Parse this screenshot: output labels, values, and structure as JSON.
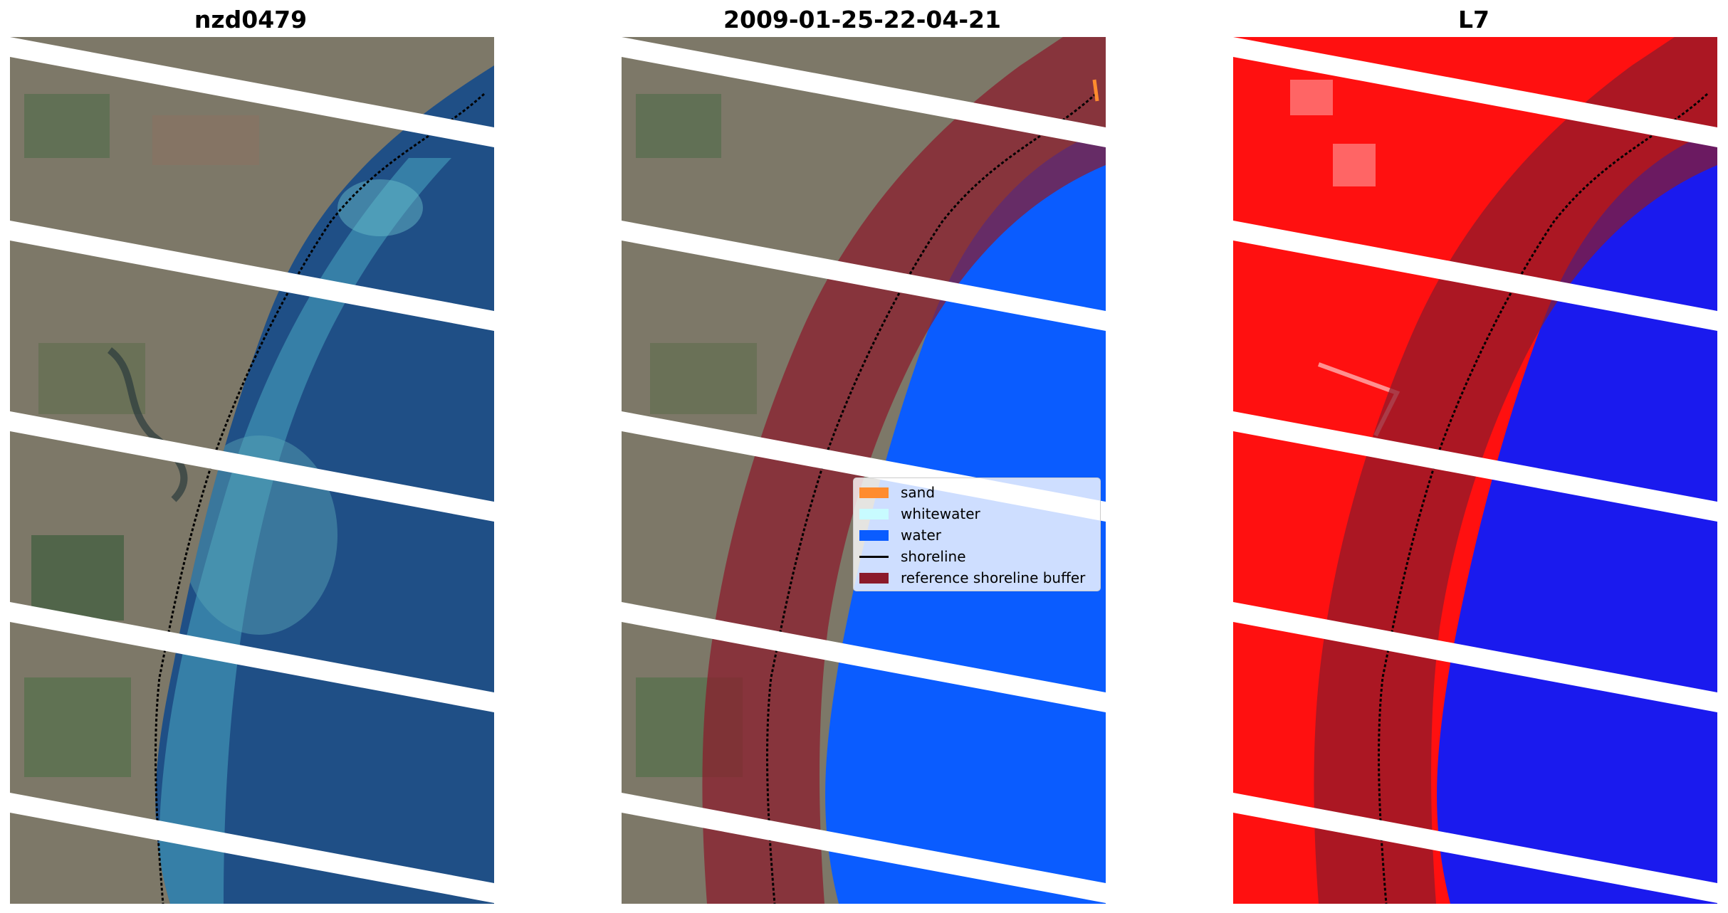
{
  "panels": [
    {
      "title": "nzd0479",
      "kind": "rgb"
    },
    {
      "title": "2009-01-25-22-04-21",
      "kind": "classified"
    },
    {
      "title": "L7",
      "kind": "index"
    }
  ],
  "legend": {
    "items": [
      {
        "label": "sand",
        "color": "#ff8c2e",
        "type": "patch"
      },
      {
        "label": "whitewater",
        "color": "#c8fbff",
        "type": "patch"
      },
      {
        "label": "water",
        "color": "#0a5cff",
        "type": "patch"
      },
      {
        "label": "shoreline",
        "color": "#000000",
        "type": "line"
      },
      {
        "label": "reference shoreline buffer",
        "color": "#8b1a2b",
        "type": "patch"
      }
    ]
  },
  "colors": {
    "land": "#7d7868",
    "sea": "#1f4f86",
    "shallow": "#3f8fb1",
    "water_class": "#0a5cff",
    "index_land": "#ff1010",
    "index_water": "#1a1aee",
    "buffer": "#8b1a2b",
    "stripe": "#ffffff"
  }
}
